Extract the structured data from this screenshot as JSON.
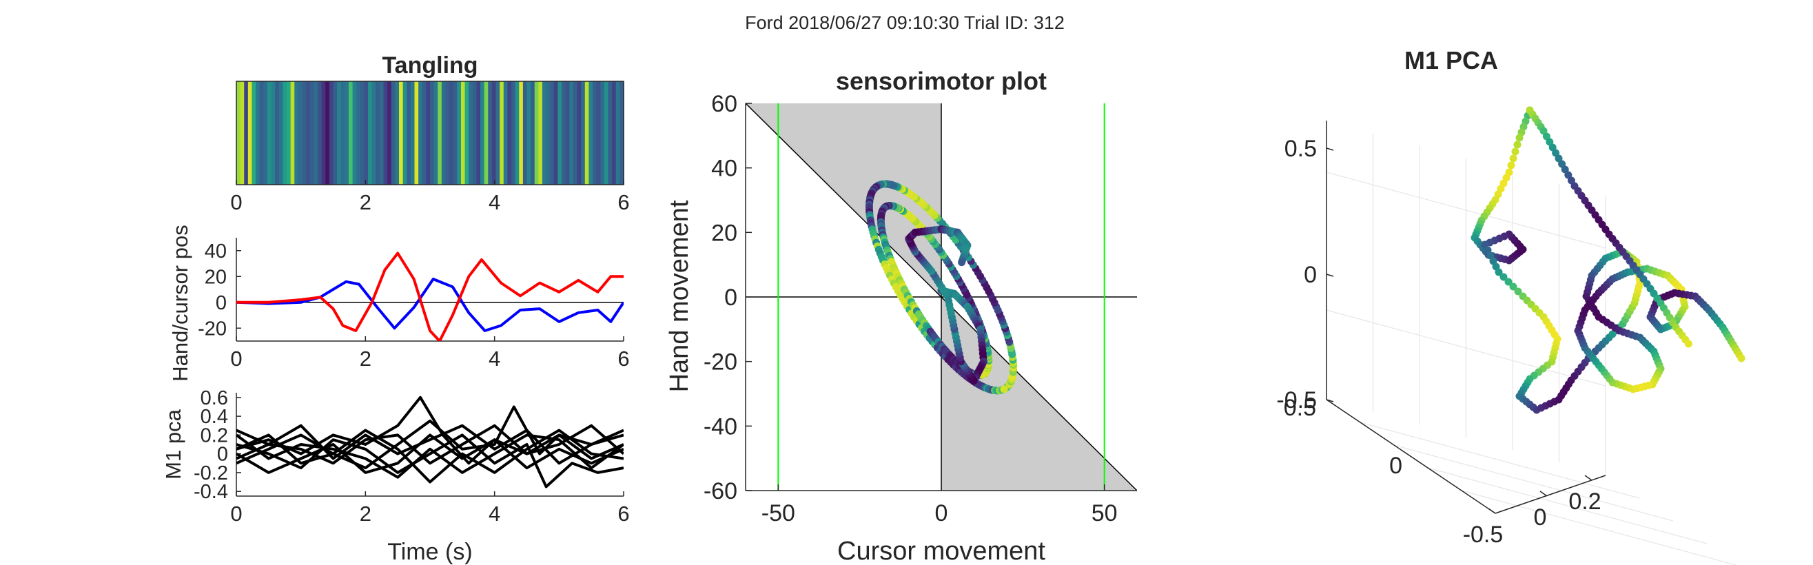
{
  "figure": {
    "suptitle": "Ford 2018/06/27 09:10:30 Trial ID: 312"
  },
  "chart_data": [
    {
      "type": "heatmap",
      "title": "Tangling",
      "colormap": "viridis",
      "xlim": [
        0,
        6
      ],
      "xticks": [
        0,
        2,
        4,
        6
      ],
      "ticklabels": [
        "0",
        "2",
        "4",
        "6"
      ],
      "bands": [
        0.85,
        0.9,
        0.2,
        0.95,
        0.6,
        0.4,
        0.3,
        0.35,
        0.5,
        0.45,
        0.3,
        0.38,
        0.55,
        0.6,
        0.9,
        0.4,
        0.35,
        0.3,
        0.25,
        0.3,
        0.35,
        0.25,
        0.15,
        0.05,
        0.2,
        0.3,
        0.45,
        0.35,
        0.4,
        0.7,
        0.45,
        0.35,
        0.3,
        0.25,
        0.5,
        0.4,
        0.3,
        0.35,
        0.2,
        0.1,
        0.3,
        0.4,
        0.95,
        0.5,
        0.3,
        0.4,
        0.95,
        0.4,
        0.3,
        0.2,
        0.3,
        0.4,
        0.8,
        0.35,
        0.3,
        0.25,
        0.3,
        0.5,
        0.9,
        0.6,
        0.35,
        0.3,
        0.2,
        0.45,
        0.8,
        0.3,
        0.2,
        0.35,
        0.9,
        0.4,
        0.2,
        0.3,
        0.5,
        0.95,
        0.3,
        0.45,
        0.3,
        0.8,
        0.9,
        0.4,
        0.35,
        0.3,
        0.2,
        0.5,
        0.3,
        0.25,
        0.4,
        0.3,
        0.2,
        0.35,
        0.9,
        0.45,
        0.3,
        0.25,
        0.35,
        0.5,
        0.3,
        0.2,
        0.4,
        0.3
      ]
    },
    {
      "type": "line",
      "title": "",
      "xlabel": "",
      "ylabel": "Hand/cursor pos",
      "xlim": [
        0,
        6
      ],
      "ylim": [
        -30,
        50
      ],
      "xticks": [
        0,
        2,
        4,
        6
      ],
      "xticklabels": [
        "0",
        "2",
        "4",
        "6"
      ],
      "yticks": [
        -20,
        0,
        20,
        40
      ],
      "yticklabels": [
        "-20",
        "0",
        "20",
        "40"
      ],
      "zero_line": true,
      "series": [
        {
          "color": "#0000ff",
          "x": [
            0,
            0.5,
            1,
            1.3,
            1.5,
            1.7,
            1.9,
            2.2,
            2.45,
            2.75,
            3.05,
            3.35,
            3.6,
            3.85,
            4.1,
            4.4,
            4.7,
            5.0,
            5.3,
            5.6,
            5.8,
            6.0
          ],
          "y": [
            0,
            -1,
            0,
            4,
            10,
            16,
            14,
            -5,
            -20,
            -4,
            18,
            12,
            -8,
            -22,
            -18,
            -6,
            -5,
            -15,
            -8,
            -6,
            -15,
            0
          ]
        },
        {
          "color": "#ff0000",
          "x": [
            0,
            0.5,
            1,
            1.3,
            1.5,
            1.65,
            1.85,
            2.1,
            2.3,
            2.5,
            2.75,
            3.0,
            3.15,
            3.35,
            3.6,
            3.8,
            4.1,
            4.4,
            4.7,
            5.0,
            5.3,
            5.6,
            5.8,
            6.0
          ],
          "y": [
            0,
            0,
            2,
            4,
            -5,
            -18,
            -22,
            0,
            25,
            38,
            18,
            -22,
            -30,
            -10,
            20,
            33,
            15,
            5,
            15,
            8,
            17,
            8,
            20,
            20
          ]
        }
      ]
    },
    {
      "type": "line",
      "title": "",
      "xlabel": "Time (s)",
      "ylabel": "M1 pca",
      "xlim": [
        0,
        6
      ],
      "ylim": [
        -0.45,
        0.65
      ],
      "xticks": [
        0,
        2,
        4,
        6
      ],
      "xticklabels": [
        "0",
        "2",
        "4",
        "6"
      ],
      "yticks": [
        -0.4,
        -0.2,
        0,
        0.2,
        0.4,
        0.6
      ],
      "yticklabels": [
        "-0.4",
        "-0.2",
        "0",
        "0.2",
        "0.4",
        "0.6"
      ],
      "series": [
        {
          "color": "#000000",
          "x": [
            0,
            0.5,
            1,
            1.5,
            2,
            2.5,
            2.85,
            3.2,
            3.6,
            4.0,
            4.5,
            5.0,
            5.5,
            6.0
          ],
          "y": [
            0.05,
            0.15,
            0.0,
            0.2,
            0.1,
            0.3,
            0.6,
            0.2,
            -0.1,
            0.15,
            0.0,
            0.2,
            0.1,
            0.2
          ]
        },
        {
          "color": "#000000",
          "x": [
            0,
            0.5,
            1,
            1.5,
            2,
            2.5,
            3.0,
            3.5,
            4.0,
            4.5,
            5.0,
            5.5,
            6.0
          ],
          "y": [
            0.25,
            0.1,
            0.3,
            -0.05,
            0.2,
            0.0,
            0.15,
            0.3,
            0.05,
            0.25,
            -0.1,
            0.1,
            0.25
          ]
        },
        {
          "color": "#000000",
          "x": [
            0,
            0.5,
            1,
            1.5,
            2,
            2.5,
            3.0,
            3.5,
            4.0,
            4.3,
            4.7,
            5.0,
            5.5,
            6.0
          ],
          "y": [
            -0.1,
            0.05,
            0.2,
            0.0,
            -0.15,
            0.1,
            0.35,
            0.05,
            0.1,
            0.5,
            0.0,
            0.2,
            -0.05,
            0.1
          ]
        },
        {
          "color": "#000000",
          "x": [
            0,
            0.5,
            1,
            1.5,
            2,
            2.5,
            3.0,
            3.5,
            4.0,
            4.5,
            5.0,
            5.5,
            6.0
          ],
          "y": [
            0.0,
            -0.2,
            -0.05,
            0.1,
            -0.2,
            -0.1,
            0.2,
            -0.05,
            0.15,
            -0.15,
            0.05,
            -0.1,
            0.05
          ]
        },
        {
          "color": "#000000",
          "x": [
            0,
            0.5,
            1,
            1.5,
            2,
            2.5,
            3.0,
            3.5,
            4.0,
            4.5,
            4.8,
            5.2,
            5.6,
            6.0
          ],
          "y": [
            0.1,
            0.0,
            -0.15,
            0.15,
            0.05,
            -0.2,
            0.0,
            0.2,
            -0.1,
            0.1,
            -0.35,
            -0.1,
            -0.2,
            -0.15
          ]
        },
        {
          "color": "#000000",
          "x": [
            0,
            0.5,
            1,
            1.5,
            2,
            2.5,
            3.0,
            3.5,
            4.0,
            4.5,
            5.0,
            5.5,
            6.0
          ],
          "y": [
            -0.05,
            0.1,
            0.05,
            -0.1,
            0.15,
            0.2,
            -0.1,
            0.1,
            0.3,
            0.0,
            0.1,
            0.3,
            0.0
          ]
        },
        {
          "color": "#000000",
          "x": [
            0,
            0.5,
            1,
            1.5,
            2,
            2.5,
            3.0,
            3.5,
            4.0,
            4.5,
            5.0,
            5.5,
            6.0
          ],
          "y": [
            0.2,
            -0.05,
            0.1,
            0.05,
            -0.05,
            -0.25,
            0.05,
            -0.2,
            0.0,
            0.2,
            0.15,
            -0.15,
            0.1
          ]
        },
        {
          "color": "#000000",
          "x": [
            0,
            0.5,
            1,
            1.5,
            2,
            2.5,
            3.0,
            3.5,
            4.0,
            4.5,
            5.0,
            5.5,
            6.0
          ],
          "y": [
            0.05,
            0.2,
            -0.1,
            0.0,
            0.25,
            0.05,
            -0.3,
            0.0,
            -0.2,
            0.05,
            0.25,
            0.0,
            -0.05
          ]
        }
      ]
    },
    {
      "type": "scatter",
      "title": "sensorimotor plot",
      "xlabel": "Cursor movement",
      "ylabel": "Hand movement",
      "xlim": [
        -60,
        60
      ],
      "ylim": [
        -60,
        60
      ],
      "xticks": [
        -50,
        0,
        50
      ],
      "xticklabels": [
        "-50",
        "0",
        "50"
      ],
      "yticks": [
        -60,
        -40,
        -20,
        0,
        20,
        40,
        60
      ],
      "yticklabels": [
        "-60",
        "-40",
        "-20",
        "0",
        "20",
        "40",
        "60"
      ],
      "green_lines_x": [
        -50,
        50
      ],
      "diagonal": "y = -x",
      "colormap": "viridis",
      "loops": [
        {
          "cx": 0,
          "cy": 3,
          "rx": 37,
          "ry": 12,
          "angle_deg": -58
        },
        {
          "cx": -2,
          "cy": 2,
          "rx": 30,
          "ry": 8,
          "angle_deg": -60
        }
      ],
      "path": [
        {
          "x": 0,
          "y": 2
        },
        {
          "x": 4,
          "y": 1
        },
        {
          "x": 8,
          "y": -3
        },
        {
          "x": 12,
          "y": -10
        },
        {
          "x": 13,
          "y": -20
        },
        {
          "x": 10,
          "y": -26
        },
        {
          "x": 6,
          "y": -20
        },
        {
          "x": 4,
          "y": -10
        },
        {
          "x": 2,
          "y": 0
        },
        {
          "x": -3,
          "y": 8
        },
        {
          "x": -8,
          "y": 14
        },
        {
          "x": -10,
          "y": 18
        },
        {
          "x": -8,
          "y": 20
        },
        {
          "x": 0,
          "y": 21
        },
        {
          "x": 5,
          "y": 20
        },
        {
          "x": 8,
          "y": 16
        },
        {
          "x": 6,
          "y": 10
        }
      ]
    },
    {
      "type": "scatter",
      "title": "M1 PCA",
      "projection": "3d",
      "zticks": [
        -0.5,
        0,
        0.5
      ],
      "zticklabels": [
        "-0.5",
        "0",
        "0.5"
      ],
      "xticks": [
        -0.5,
        0,
        0.2
      ],
      "xticklabels": [
        "-0.5",
        "0",
        "0.2"
      ],
      "yticks": [
        0.5,
        0
      ],
      "yticklabels": [
        "0.5",
        "0"
      ],
      "colormap": "viridis",
      "trajectory": [
        {
          "px": 2220,
          "py": 160
        },
        {
          "px": 2205,
          "py": 200
        },
        {
          "px": 2190,
          "py": 250
        },
        {
          "px": 2170,
          "py": 290
        },
        {
          "px": 2150,
          "py": 320
        },
        {
          "px": 2140,
          "py": 345
        },
        {
          "px": 2160,
          "py": 370
        },
        {
          "px": 2190,
          "py": 378
        },
        {
          "px": 2210,
          "py": 362
        },
        {
          "px": 2190,
          "py": 340
        },
        {
          "px": 2155,
          "py": 355
        },
        {
          "px": 2175,
          "py": 395
        },
        {
          "px": 2210,
          "py": 430
        },
        {
          "px": 2240,
          "py": 460
        },
        {
          "px": 2260,
          "py": 492
        },
        {
          "px": 2252,
          "py": 525
        },
        {
          "px": 2220,
          "py": 550
        },
        {
          "px": 2205,
          "py": 575
        },
        {
          "px": 2230,
          "py": 595
        },
        {
          "px": 2262,
          "py": 580
        },
        {
          "px": 2280,
          "py": 552
        },
        {
          "px": 2305,
          "py": 520
        },
        {
          "px": 2330,
          "py": 495
        },
        {
          "px": 2355,
          "py": 470
        },
        {
          "px": 2372,
          "py": 440
        },
        {
          "px": 2380,
          "py": 410
        },
        {
          "px": 2375,
          "py": 380
        },
        {
          "px": 2355,
          "py": 365
        },
        {
          "px": 2330,
          "py": 375
        },
        {
          "px": 2310,
          "py": 400
        },
        {
          "px": 2302,
          "py": 430
        },
        {
          "px": 2320,
          "py": 460
        },
        {
          "px": 2350,
          "py": 480
        },
        {
          "px": 2380,
          "py": 490
        },
        {
          "px": 2400,
          "py": 510
        },
        {
          "px": 2410,
          "py": 535
        },
        {
          "px": 2398,
          "py": 558
        },
        {
          "px": 2370,
          "py": 565
        },
        {
          "px": 2340,
          "py": 555
        },
        {
          "px": 2320,
          "py": 530
        },
        {
          "px": 2300,
          "py": 505
        },
        {
          "px": 2290,
          "py": 480
        },
        {
          "px": 2300,
          "py": 450
        },
        {
          "px": 2320,
          "py": 425
        },
        {
          "px": 2340,
          "py": 405
        },
        {
          "px": 2362,
          "py": 395
        },
        {
          "px": 2390,
          "py": 390
        },
        {
          "px": 2420,
          "py": 400
        },
        {
          "px": 2440,
          "py": 420
        },
        {
          "px": 2445,
          "py": 445
        },
        {
          "px": 2430,
          "py": 470
        },
        {
          "px": 2410,
          "py": 478
        },
        {
          "px": 2395,
          "py": 460
        },
        {
          "px": 2405,
          "py": 435
        },
        {
          "px": 2430,
          "py": 425
        },
        {
          "px": 2460,
          "py": 430
        },
        {
          "px": 2480,
          "py": 450
        },
        {
          "px": 2500,
          "py": 475
        },
        {
          "px": 2515,
          "py": 500
        },
        {
          "px": 2530,
          "py": 525
        }
      ],
      "trajectory2": [
        {
          "px": 2220,
          "py": 160
        },
        {
          "px": 2240,
          "py": 190
        },
        {
          "px": 2262,
          "py": 230
        },
        {
          "px": 2285,
          "py": 270
        },
        {
          "px": 2310,
          "py": 305
        },
        {
          "px": 2335,
          "py": 340
        },
        {
          "px": 2360,
          "py": 372
        },
        {
          "px": 2385,
          "py": 405
        },
        {
          "px": 2410,
          "py": 440
        },
        {
          "px": 2432,
          "py": 475
        },
        {
          "px": 2455,
          "py": 505
        }
      ]
    }
  ]
}
